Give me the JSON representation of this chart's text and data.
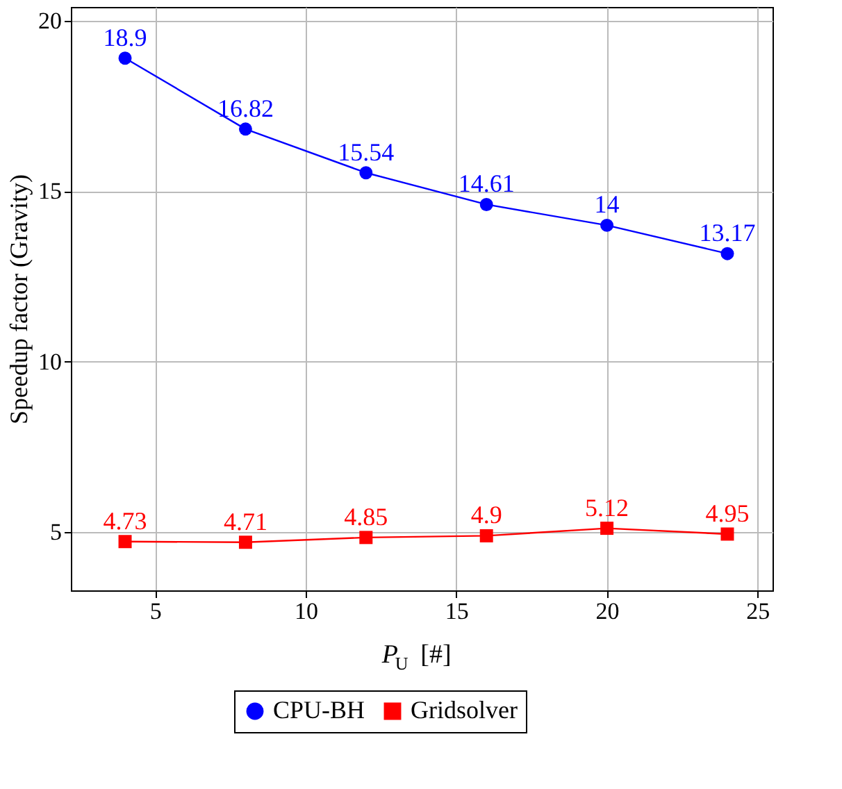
{
  "chart_data": {
    "type": "line",
    "xlabel": "P$_{U}$ [#]",
    "ylabel": "Speedup factor (Gravity)",
    "x": [
      4,
      8,
      12,
      16,
      20,
      24
    ],
    "series": [
      {
        "name": "CPU-BH",
        "color": "#0000ff",
        "marker": "circle",
        "values": [
          18.9,
          16.82,
          15.54,
          14.61,
          14,
          13.17
        ]
      },
      {
        "name": "Gridsolver",
        "color": "#ff0000",
        "marker": "square",
        "values": [
          4.73,
          4.71,
          4.85,
          4.9,
          5.12,
          4.95
        ]
      }
    ],
    "xlim": [
      2.2,
      25.5
    ],
    "xticks": [
      5,
      10,
      15,
      20,
      25
    ],
    "ylim": [
      3.3,
      20.4
    ],
    "yticks": [
      5,
      10,
      15,
      20
    ],
    "grid": true,
    "legend": "bottom",
    "data_labels": true,
    "line_style": "solid"
  }
}
